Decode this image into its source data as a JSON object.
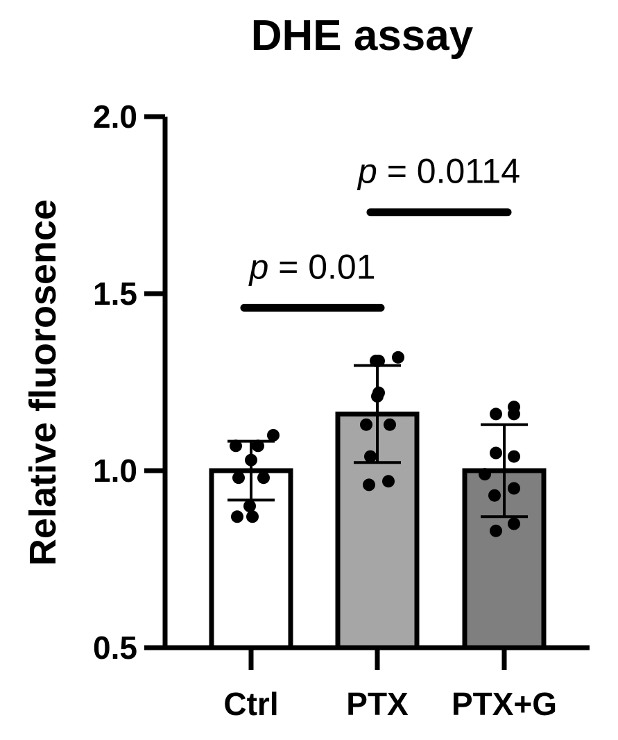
{
  "chart_data": {
    "type": "bar",
    "title": "DHE assay",
    "xlabel": "",
    "ylabel": "Relative fluorosence",
    "ylim": [
      0.5,
      2.0
    ],
    "yticks": [
      "0.5",
      "1.0",
      "1.5",
      "2.0"
    ],
    "categories": [
      "Ctrl",
      "PTX",
      "PTX+G"
    ],
    "values": [
      1.0,
      1.16,
      1.0
    ],
    "error_sd": [
      0.083,
      0.137,
      0.13
    ],
    "bar_colors": [
      "#ffffff",
      "#a6a6a6",
      "#7f7f7f"
    ],
    "points": [
      [
        1.1,
        1.07,
        1.07,
        1.03,
        0.98,
        0.98,
        0.9,
        0.87,
        0.87
      ],
      [
        1.32,
        1.31,
        1.31,
        1.21,
        1.22,
        1.13,
        1.13,
        1.04,
        0.96,
        0.97
      ],
      [
        1.18,
        1.16,
        1.16,
        1.05,
        1.04,
        0.99,
        0.95,
        0.93,
        0.85,
        0.83
      ]
    ],
    "grid": false,
    "legend": "none",
    "annotations": [
      {
        "p_symbol": "p",
        "text": " = 0.01",
        "from": 0,
        "to": 1,
        "y": 1.46
      },
      {
        "p_symbol": "p",
        "text": " = 0.0114",
        "from": 1,
        "to": 2,
        "y": 1.73
      }
    ]
  }
}
